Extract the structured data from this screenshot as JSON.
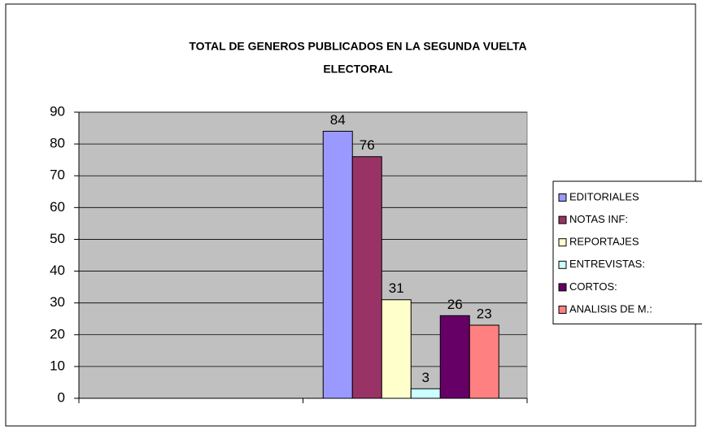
{
  "chart_data": {
    "type": "bar",
    "title": [
      "TOTAL DE GENEROS PUBLICADOS EN LA SEGUNDA VUELTA",
      "ELECTORAL"
    ],
    "categories": [
      null,
      null
    ],
    "series": [
      {
        "name": "EDITORIALES",
        "color": "#9999ff",
        "values": [
          null,
          84
        ]
      },
      {
        "name": "NOTAS INF:",
        "color": "#993366",
        "values": [
          null,
          76
        ]
      },
      {
        "name": "REPORTAJES",
        "color": "#ffffcc",
        "values": [
          null,
          31
        ]
      },
      {
        "name": "ENTREVISTAS:",
        "color": "#ccffff",
        "values": [
          null,
          3
        ]
      },
      {
        "name": "CORTOS:",
        "color": "#660066",
        "values": [
          null,
          26
        ]
      },
      {
        "name": "ANALISIS DE M.:",
        "color": "#ff8080",
        "values": [
          null,
          23
        ]
      }
    ],
    "ylim": [
      0,
      90
    ],
    "yticks": [
      0,
      10,
      20,
      30,
      40,
      50,
      60,
      70,
      80,
      90
    ],
    "grid": true,
    "legend": "right",
    "plot_background": "#c0c0c0"
  }
}
